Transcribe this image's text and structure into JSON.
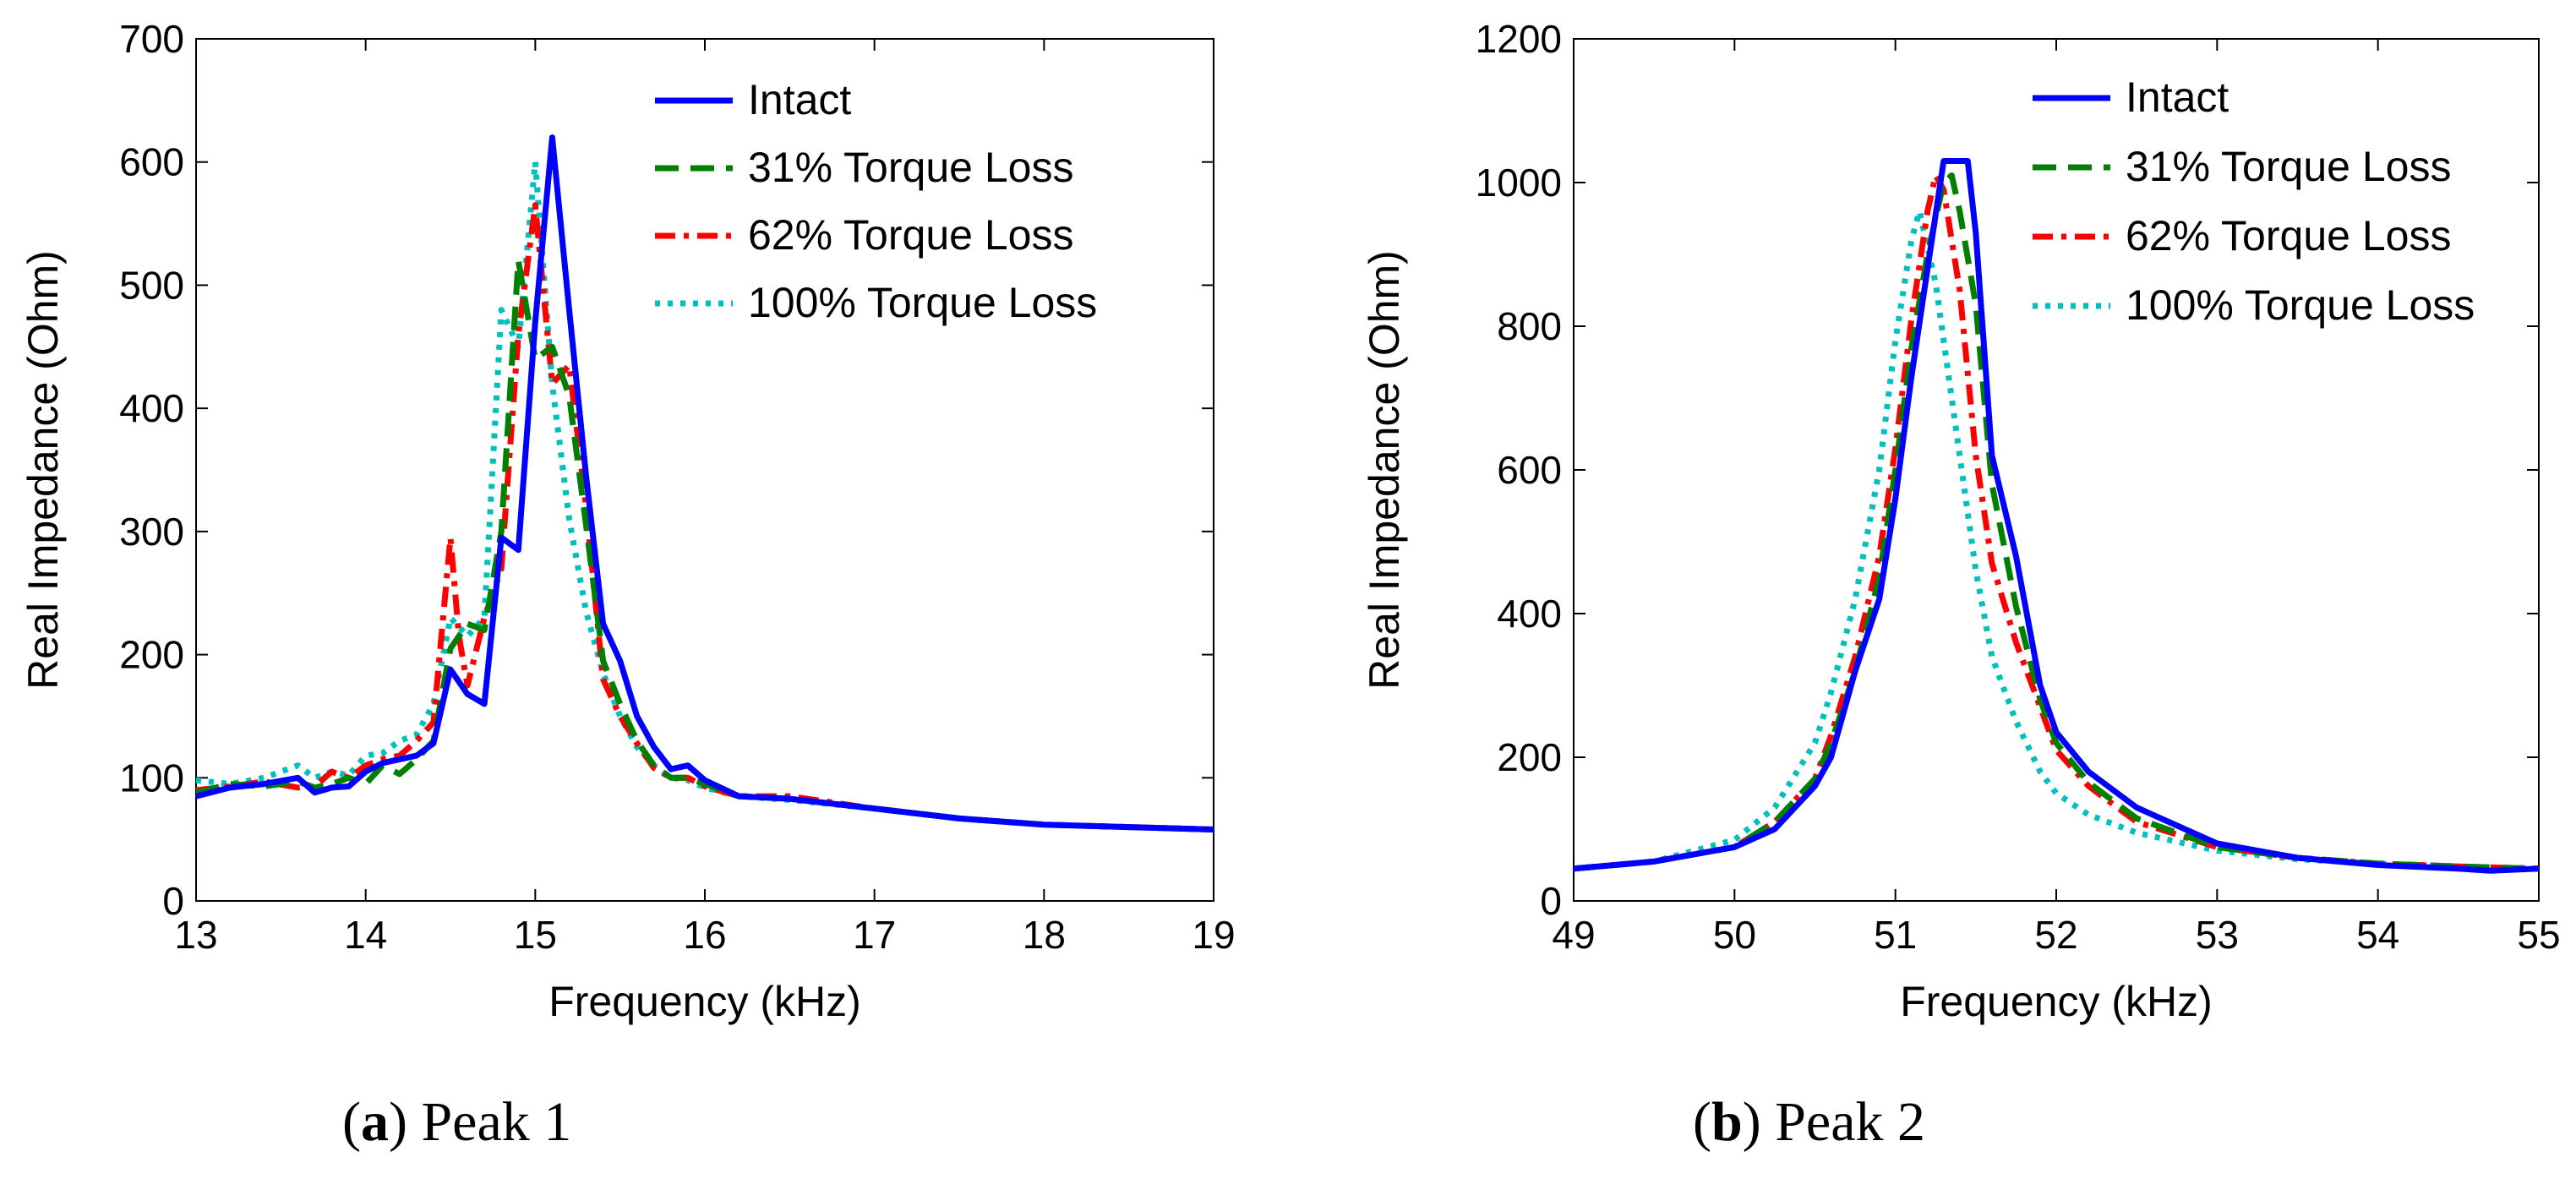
{
  "chart_data": [
    {
      "type": "line",
      "id": "a",
      "caption_letter": "a",
      "caption_text": "Peak 1",
      "xlabel": "Frequency (kHz)",
      "ylabel": "Real Impedance (Ohm)",
      "xlim": [
        13,
        19
      ],
      "ylim": [
        0,
        700
      ],
      "xticks": [
        13,
        14,
        15,
        16,
        17,
        18,
        19
      ],
      "yticks": [
        0,
        100,
        200,
        300,
        400,
        500,
        600,
        700
      ],
      "legend_position": "top-right",
      "series": [
        {
          "name": "Intact",
          "color": "#0000ff",
          "style": "solid",
          "x": [
            13.0,
            13.2,
            13.4,
            13.6,
            13.7,
            13.8,
            13.9,
            14.0,
            14.1,
            14.2,
            14.3,
            14.4,
            14.5,
            14.6,
            14.7,
            14.8,
            14.9,
            15.0,
            15.1,
            15.2,
            15.3,
            15.4,
            15.5,
            15.6,
            15.7,
            15.8,
            15.9,
            16.0,
            16.2,
            16.5,
            17.0,
            17.5,
            18.0,
            18.5,
            19.0
          ],
          "y": [
            85,
            92,
            95,
            100,
            88,
            92,
            93,
            105,
            112,
            115,
            118,
            128,
            188,
            168,
            160,
            295,
            285,
            470,
            620,
            480,
            345,
            225,
            195,
            150,
            125,
            107,
            110,
            98,
            85,
            83,
            75,
            67,
            62,
            60,
            58
          ]
        },
        {
          "name": "31% Torque Loss",
          "color": "#007f00",
          "style": "dashed",
          "x": [
            13.0,
            13.2,
            13.4,
            13.6,
            13.7,
            13.8,
            13.9,
            14.0,
            14.1,
            14.2,
            14.3,
            14.4,
            14.5,
            14.6,
            14.7,
            14.8,
            14.9,
            15.0,
            15.1,
            15.2,
            15.3,
            15.4,
            15.5,
            15.6,
            15.7,
            15.8,
            15.9,
            16.0,
            16.2,
            16.5,
            17.0,
            17.5,
            18.0,
            18.5,
            19.0
          ],
          "y": [
            88,
            95,
            93,
            97,
            92,
            95,
            100,
            95,
            110,
            103,
            115,
            130,
            205,
            225,
            220,
            300,
            520,
            440,
            450,
            410,
            305,
            195,
            160,
            130,
            110,
            100,
            100,
            95,
            85,
            83,
            75,
            67,
            62,
            60,
            58
          ]
        },
        {
          "name": "62% Torque Loss",
          "color": "#ff0000",
          "style": "dashdot",
          "x": [
            13.0,
            13.2,
            13.4,
            13.6,
            13.7,
            13.8,
            13.9,
            14.0,
            14.1,
            14.2,
            14.3,
            14.4,
            14.5,
            14.55,
            14.6,
            14.7,
            14.8,
            14.9,
            15.0,
            15.1,
            15.2,
            15.3,
            15.4,
            15.5,
            15.6,
            15.7,
            15.8,
            15.9,
            16.0,
            16.2,
            16.5,
            17.0,
            17.5,
            18.0,
            18.5,
            19.0
          ],
          "y": [
            90,
            93,
            97,
            92,
            93,
            105,
            100,
            110,
            115,
            118,
            130,
            145,
            295,
            215,
            175,
            230,
            270,
            460,
            565,
            420,
            435,
            320,
            180,
            150,
            128,
            108,
            100,
            100,
            93,
            85,
            85,
            75,
            67,
            62,
            60,
            58
          ]
        },
        {
          "name": "100% Torque Loss",
          "color": "#00bfbf",
          "style": "dotted",
          "x": [
            13.0,
            13.2,
            13.4,
            13.6,
            13.7,
            13.8,
            13.9,
            14.0,
            14.1,
            14.2,
            14.3,
            14.4,
            14.5,
            14.6,
            14.7,
            14.8,
            14.9,
            15.0,
            15.1,
            15.2,
            15.3,
            15.4,
            15.5,
            15.6,
            15.7,
            15.8,
            15.9,
            16.0,
            16.2,
            16.5,
            17.0,
            17.5,
            18.0,
            18.5,
            19.0
          ],
          "y": [
            98,
            95,
            100,
            110,
            100,
            105,
            102,
            118,
            120,
            130,
            135,
            160,
            230,
            215,
            230,
            480,
            450,
            600,
            420,
            310,
            235,
            185,
            150,
            125,
            110,
            100,
            98,
            92,
            85,
            82,
            75,
            67,
            62,
            60,
            58
          ]
        }
      ]
    },
    {
      "type": "line",
      "id": "b",
      "caption_letter": "b",
      "caption_text": "Peak 2",
      "xlabel": "Frequency (kHz)",
      "ylabel": "Real Impedance (Ohm)",
      "xlim": [
        49,
        55
      ],
      "ylim": [
        0,
        1200
      ],
      "xticks": [
        49,
        50,
        51,
        52,
        53,
        54,
        55
      ],
      "yticks": [
        0,
        200,
        400,
        600,
        800,
        1000,
        1200
      ],
      "legend_position": "top-right",
      "series": [
        {
          "name": "Intact",
          "color": "#0000ff",
          "style": "solid",
          "x": [
            49.0,
            49.5,
            50.0,
            50.25,
            50.5,
            50.6,
            50.75,
            50.9,
            51.0,
            51.1,
            51.2,
            51.3,
            51.35,
            51.45,
            51.5,
            51.6,
            51.75,
            51.9,
            52.0,
            52.2,
            52.5,
            53.0,
            53.5,
            54.0,
            54.5,
            54.7,
            55.0
          ],
          "y": [
            45,
            55,
            75,
            100,
            160,
            200,
            320,
            420,
            560,
            730,
            880,
            1030,
            1030,
            1030,
            930,
            620,
            480,
            300,
            235,
            180,
            130,
            80,
            60,
            50,
            45,
            42,
            45
          ]
        },
        {
          "name": "31% Torque Loss",
          "color": "#007f00",
          "style": "dashed",
          "x": [
            49.0,
            49.5,
            50.0,
            50.25,
            50.5,
            50.6,
            50.75,
            50.9,
            51.0,
            51.1,
            51.2,
            51.3,
            51.35,
            51.4,
            51.5,
            51.6,
            51.75,
            51.9,
            52.0,
            52.2,
            52.5,
            53.0,
            53.5,
            54.0,
            54.5,
            55.0
          ],
          "y": [
            45,
            55,
            75,
            110,
            170,
            220,
            320,
            450,
            600,
            770,
            900,
            1000,
            1010,
            960,
            830,
            580,
            410,
            280,
            220,
            165,
            115,
            75,
            60,
            52,
            48,
            45
          ]
        },
        {
          "name": "62% Torque Loss",
          "color": "#ff0000",
          "style": "dashdot",
          "x": [
            49.0,
            49.5,
            50.0,
            50.25,
            50.5,
            50.6,
            50.75,
            50.9,
            51.0,
            51.1,
            51.2,
            51.25,
            51.3,
            51.4,
            51.5,
            51.6,
            51.75,
            51.9,
            52.0,
            52.2,
            52.5,
            53.0,
            53.5,
            54.0,
            54.5,
            55.0
          ],
          "y": [
            45,
            55,
            75,
            110,
            170,
            230,
            340,
            480,
            630,
            810,
            960,
            1010,
            990,
            850,
            620,
            470,
            360,
            270,
            210,
            160,
            110,
            75,
            60,
            52,
            48,
            45
          ]
        },
        {
          "name": "100% Torque Loss",
          "color": "#00bfbf",
          "style": "dotted",
          "x": [
            49.0,
            49.5,
            50.0,
            50.25,
            50.5,
            50.6,
            50.75,
            50.9,
            51.0,
            51.1,
            51.15,
            51.25,
            51.35,
            51.5,
            51.6,
            51.75,
            51.9,
            52.0,
            52.2,
            52.5,
            53.0,
            53.5,
            54.0,
            54.5,
            55.0
          ],
          "y": [
            45,
            55,
            85,
            130,
            220,
            290,
            420,
            600,
            780,
            920,
            960,
            860,
            700,
            460,
            340,
            250,
            180,
            150,
            120,
            95,
            70,
            58,
            52,
            48,
            45
          ]
        }
      ]
    }
  ]
}
